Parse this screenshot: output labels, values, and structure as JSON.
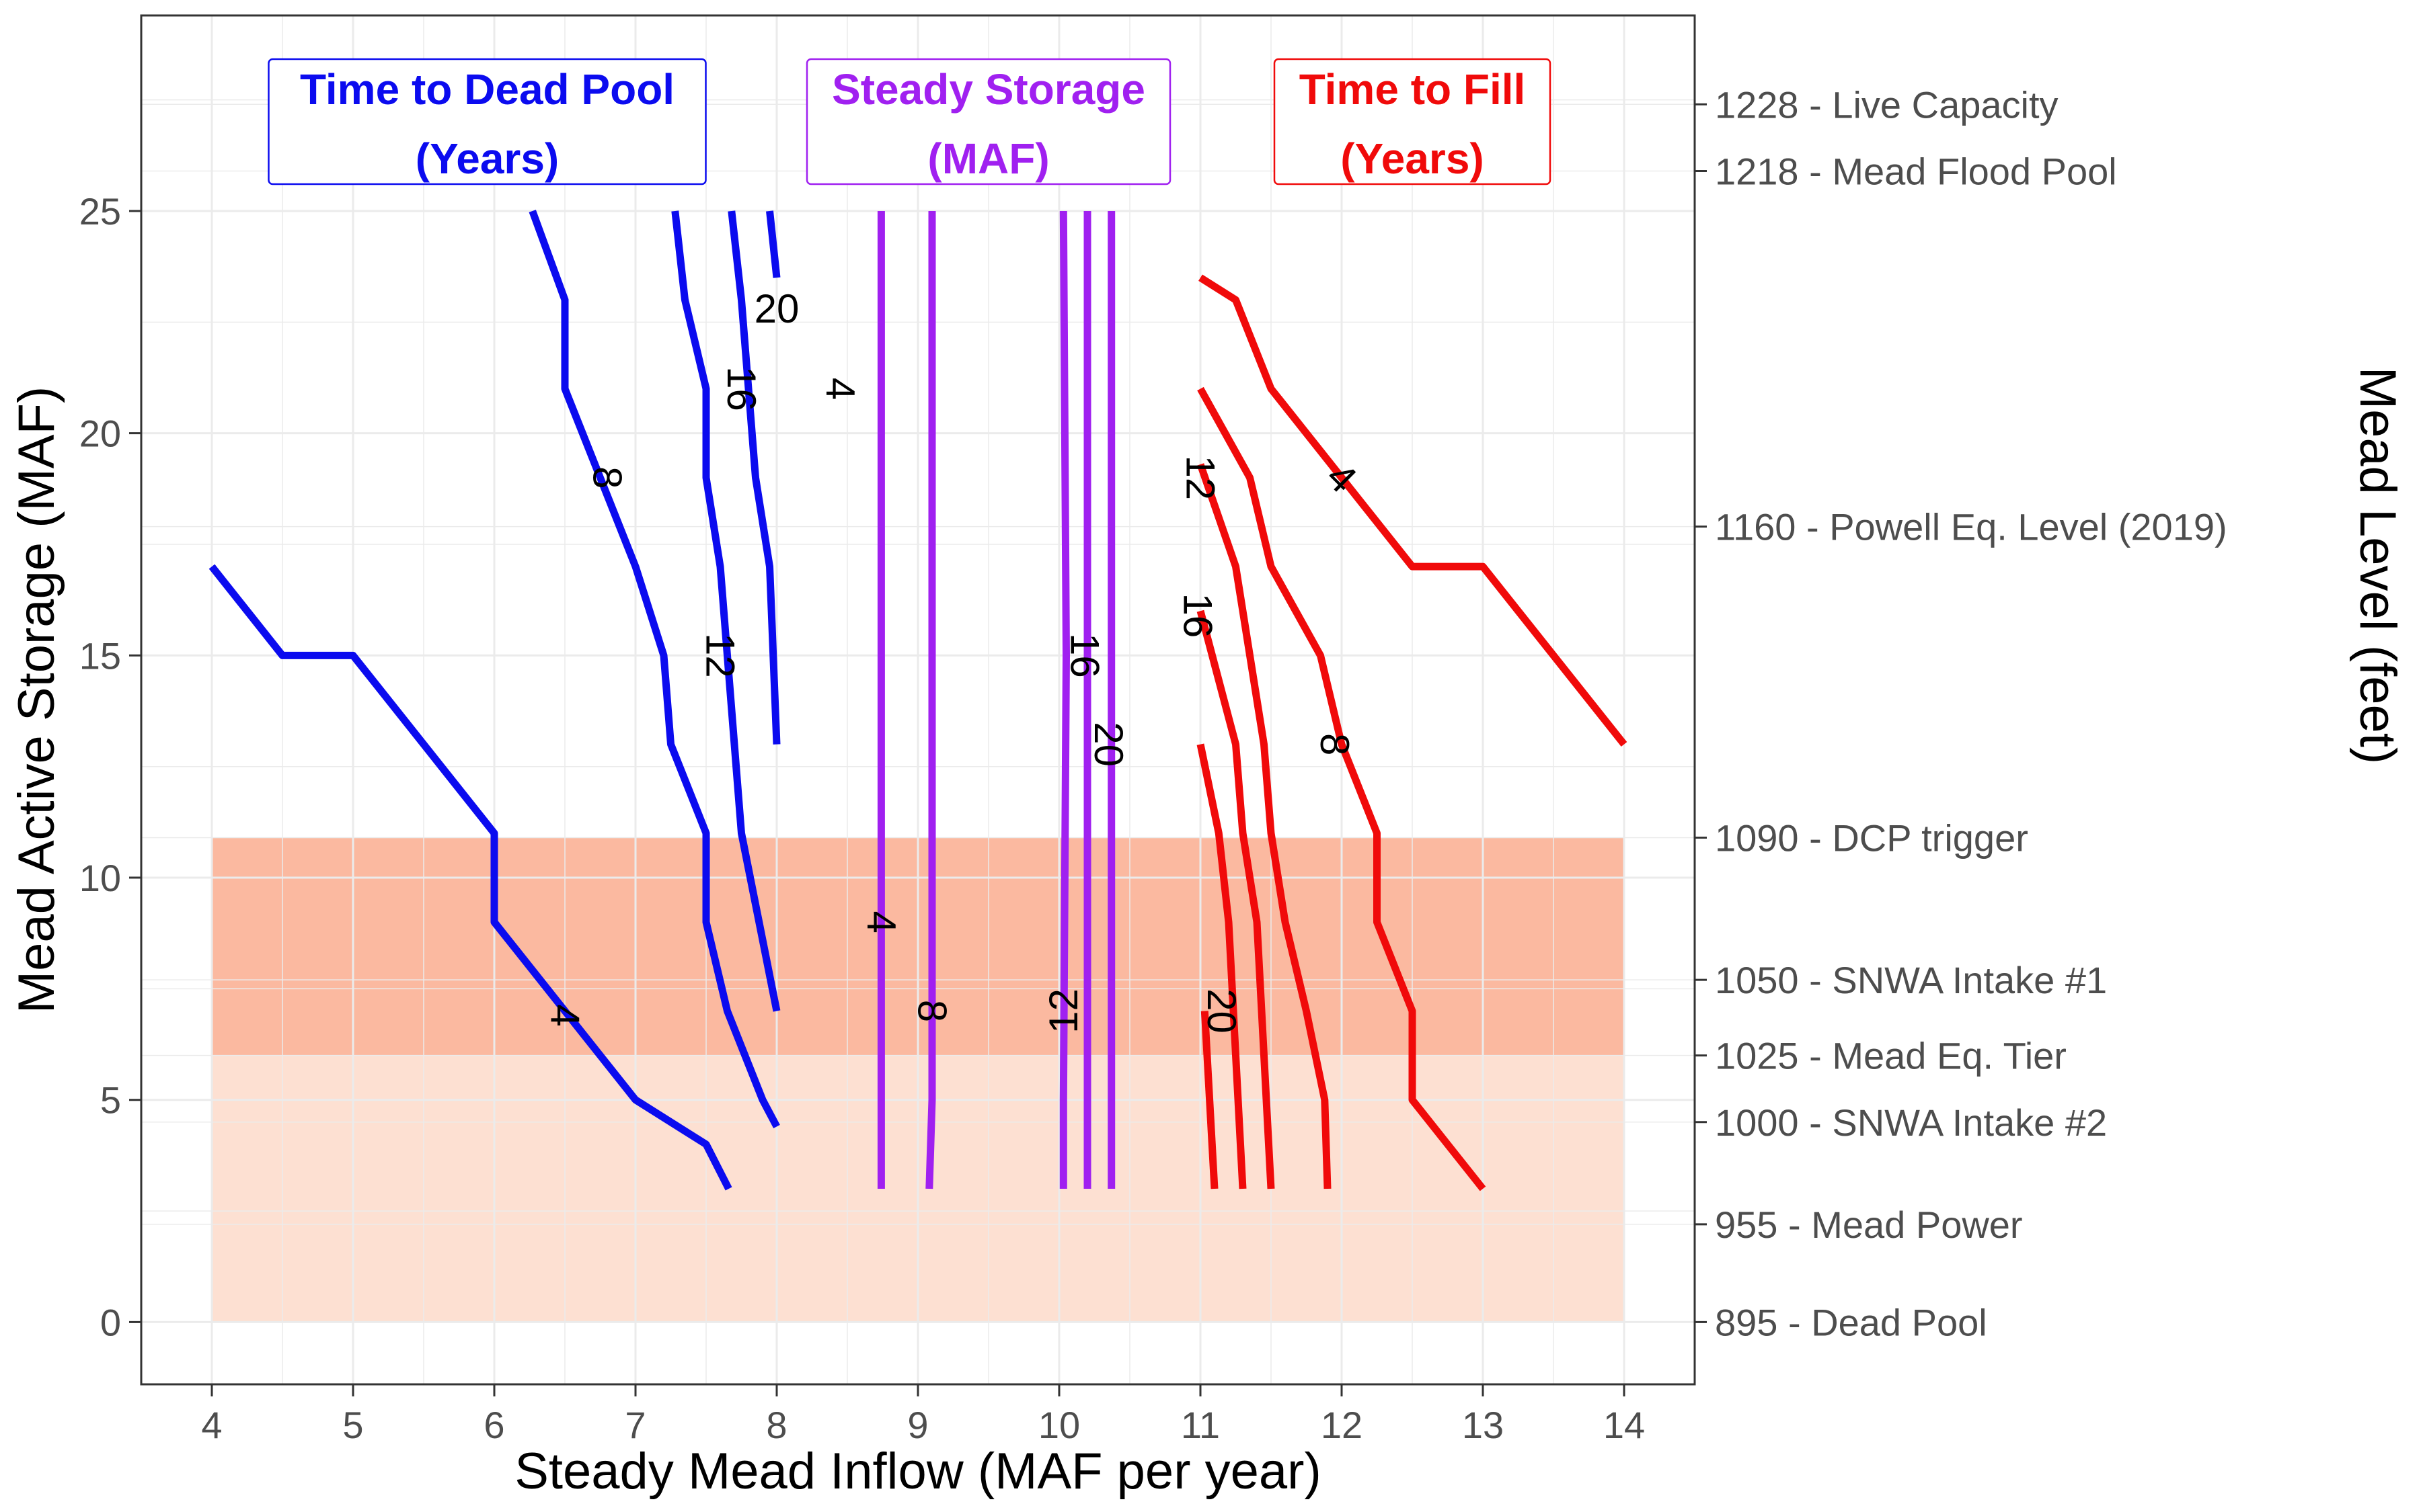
{
  "chart_data": {
    "type": "line",
    "subtype": "contour",
    "xlabel": "Steady Mead Inflow  (MAF per year)",
    "ylabel": "Mead Active Storage (MAF)",
    "y2label": "Mead Level (feet)",
    "xlim": [
      3.5,
      14.5
    ],
    "ylim": [
      -1.4,
      29.4
    ],
    "x_ticks": [
      4,
      5,
      6,
      7,
      8,
      9,
      10,
      11,
      12,
      13,
      14
    ],
    "y_ticks": [
      0,
      5,
      10,
      15,
      20,
      25
    ],
    "grid": true,
    "colors": {
      "dead_pool": "#0b0bef",
      "steady": "#a020f0",
      "fill": "#f00a0a",
      "band_dark": "#fbb9a0",
      "band_light": "#fde0d2",
      "grid": "#ebebeb",
      "panel_border": "#333333"
    },
    "bands": [
      {
        "name": "upper-band",
        "y0": 6.0,
        "y1": 10.9,
        "color": "#fbb9a0"
      },
      {
        "name": "lower-band",
        "y0": 0.0,
        "y1": 6.0,
        "color": "#fde0d2"
      }
    ],
    "band_x": [
      4,
      14
    ],
    "group_titles": [
      {
        "line1": "Time to Dead Pool",
        "line2": "(Years)",
        "color": "#0b0bef",
        "x": 5.95
      },
      {
        "line1": "Steady Storage",
        "line2": "(MAF)",
        "color": "#a020f0",
        "x": 9.5
      },
      {
        "line1": "Time to Fill",
        "line2": "(Years)",
        "color": "#f00a0a",
        "x": 12.5
      }
    ],
    "right_axis_labels": [
      {
        "level": "1228",
        "name": "Live Capacity",
        "y": 27.4
      },
      {
        "level": "1218",
        "name": "Mead Flood Pool",
        "y": 25.9
      },
      {
        "level": "1160",
        "name": "Powell Eq. Level (2019)",
        "y": 17.9
      },
      {
        "level": "1090",
        "name": "DCP trigger",
        "y": 10.9
      },
      {
        "level": "1050",
        "name": "SNWA Intake #1",
        "y": 7.7
      },
      {
        "level": "1025",
        "name": "Mead Eq. Tier",
        "y": 6.0
      },
      {
        "level": "1000",
        "name": "SNWA Intake #2",
        "y": 4.5
      },
      {
        "level": "955",
        "name": "Mead Power",
        "y": 2.2
      },
      {
        "level": "895",
        "name": "Dead Pool",
        "y": 0.0
      }
    ],
    "series": [
      {
        "group": "dead_pool",
        "label": "4",
        "label_at": [
          6.5,
          6.9
        ],
        "label_rot": 90,
        "points": [
          [
            4.0,
            17.0
          ],
          [
            4.5,
            15.0
          ],
          [
            5.0,
            15.0
          ],
          [
            6.0,
            11.0
          ],
          [
            6.0,
            9.0
          ],
          [
            7.0,
            5.0
          ],
          [
            7.5,
            4.0
          ],
          [
            7.66,
            3.0
          ]
        ]
      },
      {
        "group": "dead_pool",
        "label": "8",
        "label_at": [
          6.8,
          19.0
        ],
        "label_rot": 90,
        "points": [
          [
            6.27,
            25.0
          ],
          [
            6.5,
            23.0
          ],
          [
            6.5,
            21.0
          ],
          [
            7.0,
            17.0
          ],
          [
            7.2,
            15.0
          ],
          [
            7.25,
            13.0
          ],
          [
            7.5,
            11.0
          ],
          [
            7.5,
            9.0
          ],
          [
            7.65,
            7.0
          ],
          [
            7.9,
            5.0
          ],
          [
            8.0,
            4.4
          ]
        ]
      },
      {
        "group": "dead_pool",
        "label": "12",
        "label_at": [
          7.6,
          15.0
        ],
        "label_rot": 90,
        "points": [
          [
            7.28,
            25.0
          ],
          [
            7.35,
            23.0
          ],
          [
            7.5,
            21.0
          ],
          [
            7.5,
            19.0
          ],
          [
            7.6,
            17.0
          ],
          [
            7.65,
            15.0
          ],
          [
            7.75,
            11.0
          ],
          [
            8.0,
            7.0
          ]
        ]
      },
      {
        "group": "dead_pool",
        "label": "16",
        "label_at": [
          7.75,
          21.0
        ],
        "label_rot": 90,
        "points": [
          [
            7.68,
            25.0
          ],
          [
            7.75,
            23.0
          ],
          [
            7.8,
            21.0
          ],
          [
            7.85,
            19.0
          ],
          [
            7.95,
            17.0
          ],
          [
            8.0,
            13.0
          ]
        ]
      },
      {
        "group": "dead_pool",
        "label": "20",
        "label_at": [
          8.0,
          22.8
        ],
        "label_rot": 0,
        "points": [
          [
            7.95,
            25.0
          ],
          [
            8.0,
            23.5
          ]
        ]
      },
      {
        "group": "steady",
        "label": "4",
        "label_at": [
          8.45,
          21.0
        ],
        "label_rot": 90,
        "points": [
          [
            8.74,
            25.0
          ],
          [
            8.74,
            3.0
          ]
        ]
      },
      {
        "group": "steady",
        "label": "4",
        "label_at": [
          8.74,
          9.0
        ],
        "label_rot": 90,
        "points": [
          [
            8.74,
            3.0
          ],
          [
            8.74,
            3.0
          ]
        ]
      },
      {
        "group": "steady",
        "label": "8",
        "label_at": [
          9.1,
          7.0
        ],
        "label_rot": 90,
        "points": [
          [
            9.1,
            25.0
          ],
          [
            9.1,
            5.0
          ],
          [
            9.08,
            3.0
          ]
        ]
      },
      {
        "group": "steady",
        "label": "12",
        "label_at": [
          10.03,
          7.0
        ],
        "label_rot": -90,
        "points": [
          [
            10.03,
            25.0
          ],
          [
            10.05,
            15.0
          ],
          [
            10.03,
            5.0
          ],
          [
            10.03,
            3.0
          ]
        ]
      },
      {
        "group": "steady",
        "label": "16",
        "label_at": [
          10.18,
          15.0
        ],
        "label_rot": 90,
        "points": [
          [
            10.2,
            25.0
          ],
          [
            10.2,
            3.0
          ]
        ]
      },
      {
        "group": "steady",
        "label": "20",
        "label_at": [
          10.35,
          13.0
        ],
        "label_rot": 90,
        "points": [
          [
            10.37,
            25.0
          ],
          [
            10.37,
            3.0
          ]
        ]
      },
      {
        "group": "fill",
        "label": "4",
        "label_at": [
          12.0,
          19.0
        ],
        "label_rot": 45,
        "points": [
          [
            11.0,
            23.5
          ],
          [
            11.25,
            23.0
          ],
          [
            11.5,
            21.0
          ],
          [
            12.0,
            19.0
          ],
          [
            12.5,
            17.0
          ],
          [
            13.0,
            17.0
          ],
          [
            14.0,
            13.0
          ]
        ]
      },
      {
        "group": "fill",
        "label": "8",
        "label_at": [
          11.95,
          13.0
        ],
        "label_rot": 90,
        "points": [
          [
            11.0,
            21.0
          ],
          [
            11.35,
            19.0
          ],
          [
            11.5,
            17.0
          ],
          [
            11.85,
            15.0
          ],
          [
            12.0,
            13.0
          ],
          [
            12.25,
            11.0
          ],
          [
            12.25,
            9.0
          ],
          [
            12.5,
            7.0
          ],
          [
            12.5,
            5.0
          ],
          [
            13.0,
            3.0
          ]
        ]
      },
      {
        "group": "fill",
        "label": "12",
        "label_at": [
          11.0,
          19.0
        ],
        "label_rot": 90,
        "points": [
          [
            11.0,
            19.3
          ],
          [
            11.25,
            17.0
          ],
          [
            11.45,
            13.0
          ],
          [
            11.5,
            11.0
          ],
          [
            11.6,
            9.0
          ],
          [
            11.75,
            7.0
          ],
          [
            11.88,
            5.0
          ],
          [
            11.9,
            3.0
          ]
        ]
      },
      {
        "group": "fill",
        "label": "16",
        "label_at": [
          10.98,
          15.9
        ],
        "label_rot": 90,
        "points": [
          [
            11.0,
            16.0
          ],
          [
            11.25,
            13.0
          ],
          [
            11.3,
            11.0
          ],
          [
            11.4,
            9.0
          ],
          [
            11.5,
            3.0
          ]
        ]
      },
      {
        "group": "fill",
        "label": "20",
        "label_at": [
          11.15,
          7.0
        ],
        "label_rot": 90,
        "points": [
          [
            11.0,
            13.0
          ],
          [
            11.13,
            11.0
          ],
          [
            11.2,
            9.0
          ],
          [
            11.3,
            3.0
          ]
        ]
      },
      {
        "group": "fill",
        "label": "",
        "label_at": null,
        "label_rot": 0,
        "points": [
          [
            11.03,
            7.0
          ],
          [
            11.1,
            3.0
          ]
        ]
      }
    ]
  }
}
